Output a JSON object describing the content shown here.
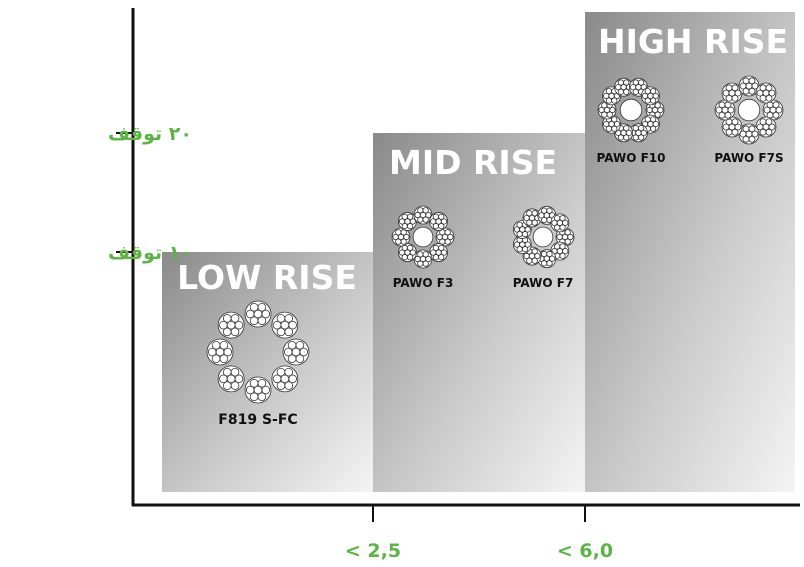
{
  "y_axis": {
    "labels": [
      "۲۰ توقف",
      "۱۰ توقف"
    ]
  },
  "x_axis": {
    "labels": [
      "< 2,5",
      "< 6,0"
    ]
  },
  "steps": [
    {
      "title": "LOW RISE",
      "ropes": [
        "F819 S-FC"
      ]
    },
    {
      "title": "MID RISE",
      "ropes": [
        "PAWO F3",
        "PAWO F7"
      ]
    },
    {
      "title": "HIGH RISE",
      "ropes": [
        "PAWO F10",
        "PAWO F7S"
      ]
    }
  ]
}
